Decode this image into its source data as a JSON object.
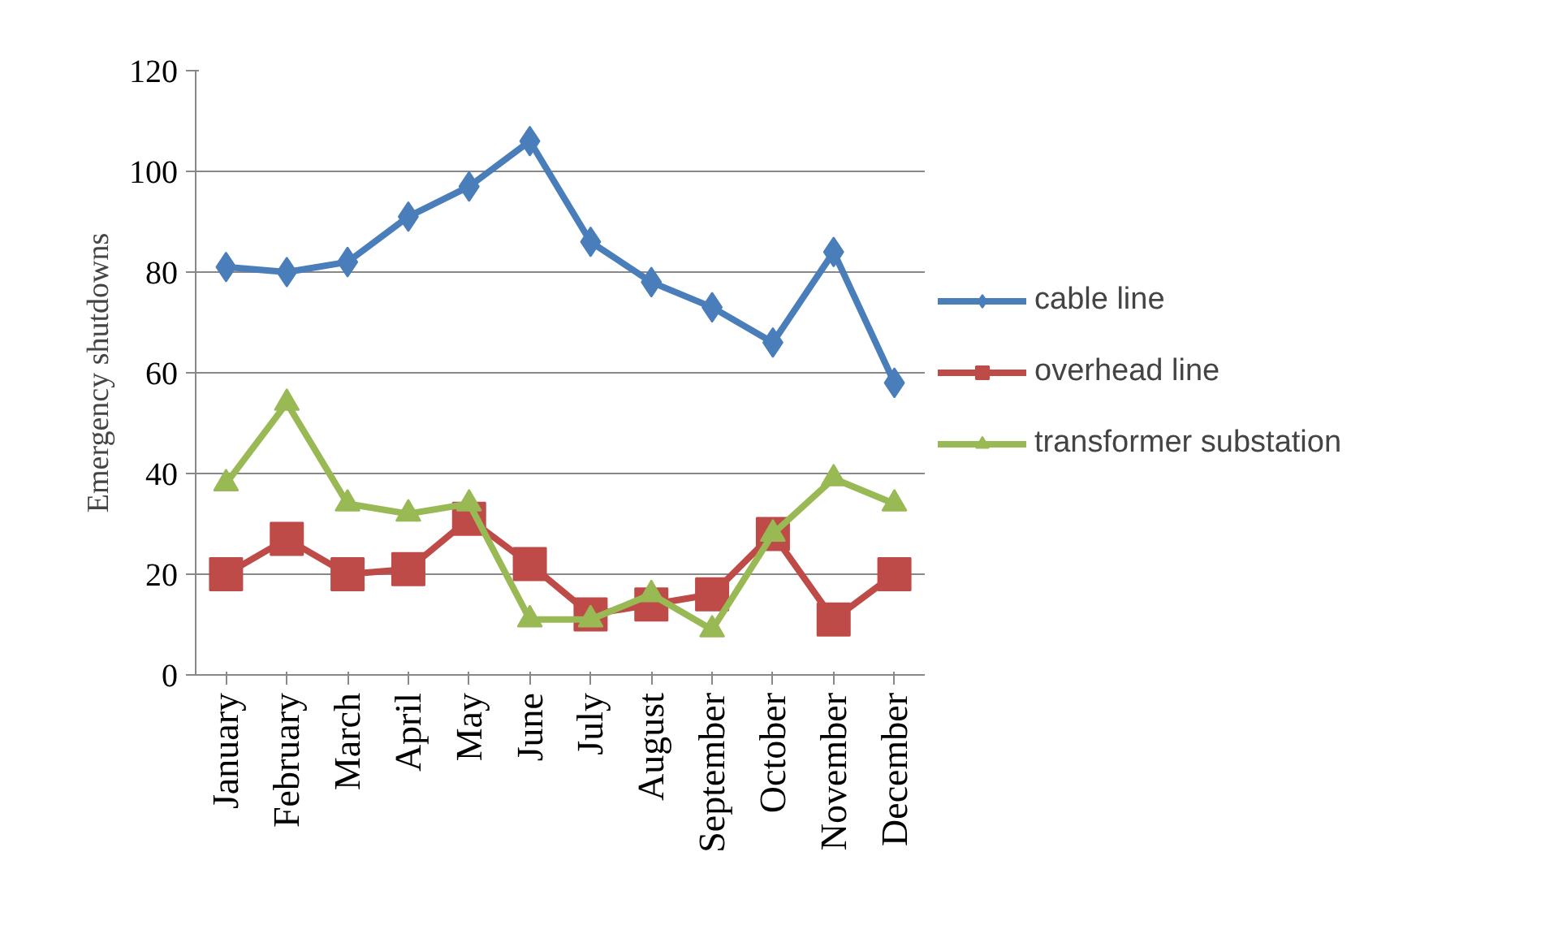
{
  "chart_data": {
    "type": "line",
    "ylabel": "Emergency shutdowns",
    "categories": [
      "January",
      "February",
      "March",
      "April",
      "May",
      "June",
      "July",
      "August",
      "September",
      "October",
      "November",
      "December"
    ],
    "series": [
      {
        "name": "cable line",
        "color": "#4a7ebb",
        "marker": "diamond",
        "values": [
          81,
          80,
          82,
          91,
          97,
          106,
          86,
          78,
          73,
          66,
          84,
          58
        ]
      },
      {
        "name": "overhead line",
        "color": "#be4b48",
        "marker": "square",
        "values": [
          20,
          27,
          20,
          21,
          31,
          22,
          12,
          14,
          16,
          28,
          11,
          20
        ]
      },
      {
        "name": "transformer substation",
        "color": "#98b954",
        "marker": "triangle",
        "values": [
          38,
          54,
          34,
          32,
          34,
          11,
          11,
          16,
          9,
          28,
          39,
          34
        ]
      }
    ],
    "ylim": [
      0,
      120
    ],
    "yticks": [
      0,
      20,
      40,
      60,
      80,
      100,
      120
    ],
    "grid": "y",
    "legend": "right",
    "line_style": "solid"
  }
}
